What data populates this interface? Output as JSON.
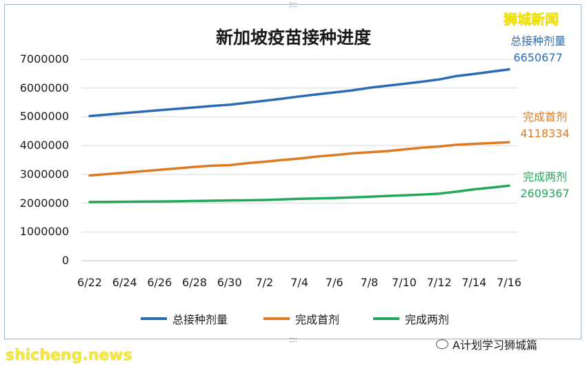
{
  "brand": {
    "name": "狮城新闻"
  },
  "footer": {
    "source": "shicheng.news",
    "wechat_account": "A计划学习狮城篇"
  },
  "colors": {
    "total": "#2a6bb5",
    "first": "#de7a22",
    "second": "#22a85a",
    "brand": "#f2e600"
  },
  "chart_data": {
    "type": "line",
    "title": "新加坡疫苗接种进度",
    "xlabel": "",
    "ylabel": "",
    "x": [
      "6/22",
      "6/23",
      "6/24",
      "6/25",
      "6/26",
      "6/27",
      "6/28",
      "6/29",
      "6/30",
      "7/1",
      "7/2",
      "7/3",
      "7/4",
      "7/5",
      "7/6",
      "7/7",
      "7/8",
      "7/9",
      "7/10",
      "7/11",
      "7/12",
      "7/13",
      "7/14",
      "7/15",
      "7/16"
    ],
    "x_tick_labels": [
      "6/22",
      "6/24",
      "6/26",
      "6/28",
      "6/30",
      "7/2",
      "7/4",
      "7/6",
      "7/8",
      "7/10",
      "7/12",
      "7/14",
      "7/16"
    ],
    "y_tick_labels": [
      "0",
      "1000000",
      "2000000",
      "3000000",
      "4000000",
      "5000000",
      "6000000",
      "7000000"
    ],
    "ylim": [
      0,
      7000000
    ],
    "grid": true,
    "legend_position": "bottom",
    "series": [
      {
        "name": "总接种剂量",
        "color": "#2a6bb5",
        "values": [
          5030000,
          5080000,
          5130000,
          5180000,
          5230000,
          5280000,
          5330000,
          5380000,
          5420000,
          5490000,
          5560000,
          5630000,
          5710000,
          5780000,
          5850000,
          5920000,
          6010000,
          6080000,
          6150000,
          6220000,
          6300000,
          6420000,
          6490000,
          6570000,
          6650677
        ]
      },
      {
        "name": "完成首剂",
        "color": "#de7a22",
        "values": [
          2960000,
          3010000,
          3060000,
          3110000,
          3160000,
          3210000,
          3260000,
          3300000,
          3320000,
          3390000,
          3440000,
          3500000,
          3550000,
          3620000,
          3670000,
          3730000,
          3770000,
          3810000,
          3870000,
          3930000,
          3970000,
          4030000,
          4060000,
          4090000,
          4118334
        ]
      },
      {
        "name": "完成两剂",
        "color": "#22a85a",
        "values": [
          2040000,
          2045000,
          2050000,
          2055000,
          2060000,
          2065000,
          2075000,
          2085000,
          2095000,
          2100000,
          2110000,
          2130000,
          2150000,
          2165000,
          2180000,
          2200000,
          2225000,
          2250000,
          2275000,
          2300000,
          2330000,
          2400000,
          2480000,
          2540000,
          2609367
        ]
      }
    ],
    "annotations": [
      {
        "series": "总接种剂量",
        "label": "总接种剂量",
        "value": "6650677"
      },
      {
        "series": "完成首剂",
        "label": "完成首剂",
        "value": "4118334"
      },
      {
        "series": "完成两剂",
        "label": "完成两剂",
        "value": "2609367"
      }
    ]
  }
}
